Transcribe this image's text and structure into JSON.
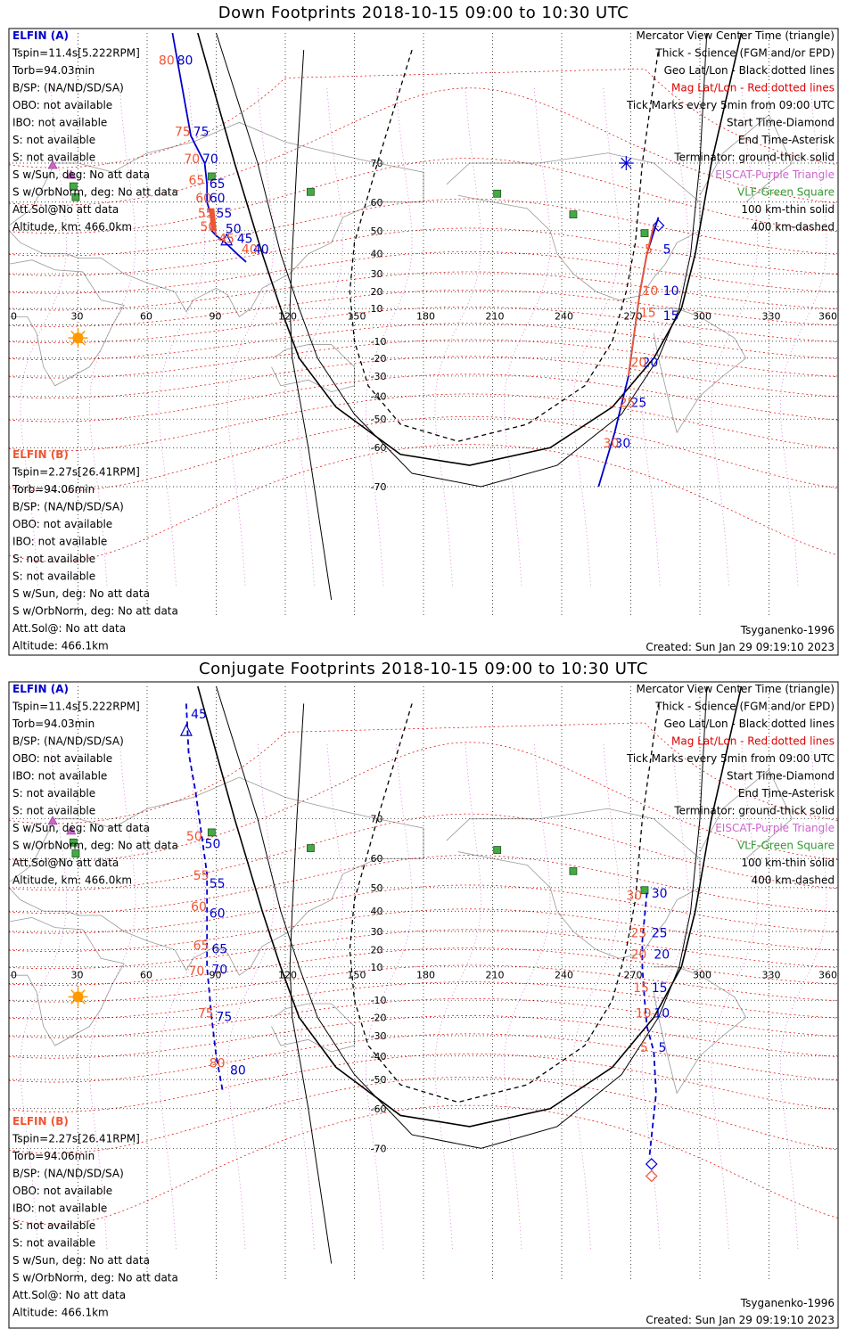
{
  "panels": [
    {
      "title": "Down Footprints 2018-10-15 09:00 to 10:30 UTC",
      "left_a": {
        "header": "ELFIN (A)",
        "lines": [
          "Tspin=11.4s[5.222RPM]",
          "Torb=94.03min",
          "B/SP: (NA/ND/SD/SA)",
          "OBO: not available",
          "IBO: not available",
          "S: not available",
          "S: not available",
          "S w/Sun, deg: No att data",
          "S w/OrbNorm, deg: No att data",
          "Att.Sol@No att data",
          "Altitude, km: 466.0km"
        ]
      },
      "left_b": {
        "header": "ELFIN (B)",
        "lines": [
          "Tspin=2.27s[26.41RPM]",
          "Torb=94.06min",
          "B/SP: (NA/ND/SD/SA)",
          "OBO: not available",
          "IBO: not available",
          "S: not available",
          "S: not available",
          "S w/Sun, deg: No att data",
          "S w/OrbNorm, deg: No att data",
          "Att.Sol@: No att data",
          "Altitude: 466.1km"
        ]
      },
      "legend": [
        "Mercator View Center Time (triangle)",
        "Thick - Science (FGM and/or EPD)",
        "Geo Lat/Lon - Black dotted lines",
        "Mag Lat/Lon - Red dotted lines",
        "Tick Marks every 5min from 09:00 UTC",
        "Start Time-Diamond",
        "End Time-Asterisk",
        "Terminator: ground-thick solid",
        "EISCAT-Purple Triangle",
        "VLF-Green Square",
        "100 km-thin solid",
        "400 km-dashed"
      ],
      "model": "Tsyganenko-1996",
      "created": "Created: Sun Jan 29 09:19:10 2023"
    },
    {
      "title": "Conjugate Footprints 2018-10-15 09:00 to 10:30 UTC",
      "left_a": {
        "header": "ELFIN (A)",
        "lines": [
          "Tspin=11.4s[5.222RPM]",
          "Torb=94.03min",
          "B/SP: (NA/ND/SD/SA)",
          "OBO: not available",
          "IBO: not available",
          "S: not available",
          "S: not available",
          "S w/Sun, deg: No att data",
          "S w/OrbNorm, deg: No att data",
          "Att.Sol@No att data",
          "Altitude, km: 466.0km"
        ]
      },
      "left_b": {
        "header": "ELFIN (B)",
        "lines": [
          "Tspin=2.27s[26.41RPM]",
          "Torb=94.06min",
          "B/SP: (NA/ND/SD/SA)",
          "OBO: not available",
          "IBO: not available",
          "S: not available",
          "S: not available",
          "S w/Sun, deg: No att data",
          "S w/OrbNorm, deg: No att data",
          "Att.Sol@: No att data",
          "Altitude: 466.1km"
        ]
      },
      "legend": [
        "Mercator View Center Time (triangle)",
        "Thick - Science (FGM and/or EPD)",
        "Geo Lat/Lon - Black dotted lines",
        "Mag Lat/Lon - Red dotted lines",
        "Tick Marks every 5min from 09:00 UTC",
        "Start Time-Diamond",
        "End Time-Asterisk",
        "Terminator: ground-thick solid",
        "EISCAT-Purple Triangle",
        "VLF-Green Square",
        "100 km-thin solid",
        "400 km-dashed"
      ],
      "model": "Tsyganenko-1996",
      "created": "Created: Sun Jan 29 09:19:10 2023"
    }
  ],
  "colors": {
    "elfin_a": "#0000cc",
    "elfin_b": "#ee5533",
    "mag_grid": "#dd0000",
    "geo_grid": "#000000",
    "eiscat": "#cc66cc",
    "vlf": "#339933",
    "sun": "#ff9900",
    "land": "#999999"
  },
  "chart_data": [
    {
      "type": "map",
      "projection": "mercator",
      "x_ticks": [
        0,
        30,
        60,
        90,
        120,
        150,
        180,
        210,
        240,
        270,
        300,
        330,
        360
      ],
      "y_ticks": [
        70,
        60,
        50,
        40,
        30,
        20,
        10,
        -10,
        -20,
        -30,
        -40,
        -50,
        -60,
        -70
      ],
      "eiscat_sites": [
        [
          19,
          69.6
        ],
        [
          27,
          67.4
        ]
      ],
      "vlf_sites": [
        [
          28,
          64.5
        ],
        [
          29,
          61.5
        ],
        [
          88,
          67
        ],
        [
          131,
          63
        ],
        [
          212,
          62.5
        ],
        [
          245,
          56
        ],
        [
          276,
          49
        ]
      ],
      "sun": [
        30,
        -8
      ],
      "series": [
        {
          "name": "ELFIN (A)",
          "track": [
            [
              71,
              85
            ],
            [
              79,
              75
            ],
            [
              85,
              70
            ],
            [
              86,
              65
            ],
            [
              86,
              60
            ],
            [
              88,
              55
            ],
            [
              88,
              50
            ],
            [
              90,
              48
            ],
            [
              94,
              45
            ],
            [
              99,
              40
            ],
            [
              103,
              36
            ]
          ],
          "science": [],
          "ticks": [
            {
              "label": "80",
              "pos": [
                73,
                83
              ]
            },
            {
              "label": "75",
              "pos": [
                80,
                75
              ]
            },
            {
              "label": "70",
              "pos": [
                84,
                70
              ]
            },
            {
              "label": "65",
              "pos": [
                87,
                64
              ]
            },
            {
              "label": "60",
              "pos": [
                87,
                60
              ]
            },
            {
              "label": "55",
              "pos": [
                90,
                55
              ]
            },
            {
              "label": "50",
              "pos": [
                94,
                49
              ]
            },
            {
              "label": "45",
              "pos": [
                99,
                45
              ]
            },
            {
              "label": "40",
              "pos": [
                106,
                40
              ]
            }
          ],
          "center_triangle": [
            94.5,
            46
          ]
        },
        {
          "name": "ELFIN (B)",
          "track": [
            [
              88,
              58
            ],
            [
              89,
              52
            ],
            [
              90,
              48
            ]
          ],
          "science": [
            [
              88,
              58
            ],
            [
              89,
              50
            ]
          ],
          "ticks": [
            {
              "label": "80",
              "pos": [
                65,
                83
              ]
            },
            {
              "label": "75",
              "pos": [
                72,
                75
              ]
            },
            {
              "label": "70",
              "pos": [
                76,
                70
              ]
            },
            {
              "label": "65",
              "pos": [
                78,
                65
              ]
            },
            {
              "label": "60",
              "pos": [
                81,
                60
              ]
            },
            {
              "label": "55",
              "pos": [
                82,
                55
              ]
            },
            {
              "label": "50",
              "pos": [
                83,
                50
              ]
            },
            {
              "label": "45",
              "pos": [
                91,
                45
              ]
            },
            {
              "label": "40",
              "pos": [
                101,
                40
              ]
            }
          ]
        },
        {
          "name": "ELFIN (A) south",
          "track": [
            [
              282,
              55
            ],
            [
              277,
              40
            ],
            [
              274,
              20
            ],
            [
              272,
              0
            ],
            [
              269,
              -30
            ],
            [
              263,
              -55
            ],
            [
              256,
              -70
            ]
          ],
          "ticks": [
            {
              "label": "5",
              "pos": [
                284,
                40
              ]
            },
            {
              "label": "10",
              "pos": [
                284,
                18
              ]
            },
            {
              "label": "15",
              "pos": [
                284,
                3
              ]
            },
            {
              "label": "20",
              "pos": [
                275,
                -25
              ]
            },
            {
              "label": "25",
              "pos": [
                270,
                -45
              ]
            },
            {
              "label": "30",
              "pos": [
                263,
                -60
              ]
            }
          ],
          "start_diamond": [
            282,
            52
          ],
          "end_asterisk": [
            268,
            70
          ]
        },
        {
          "name": "ELFIN (B) south",
          "track": [
            [
              280,
              52
            ],
            [
              277,
              40
            ],
            [
              274,
              20
            ],
            [
              272,
              0
            ],
            [
              269,
              -30
            ]
          ],
          "ticks": [
            {
              "label": "5",
              "pos": [
                276,
                40
              ]
            },
            {
              "label": "10",
              "pos": [
                275,
                18
              ]
            },
            {
              "label": "15",
              "pos": [
                274,
                5
              ]
            },
            {
              "label": "20",
              "pos": [
                270,
                -25
              ]
            },
            {
              "label": "25",
              "pos": [
                265,
                -45
              ]
            },
            {
              "label": "30",
              "pos": [
                258,
                -60
              ]
            }
          ]
        }
      ]
    },
    {
      "type": "map",
      "projection": "mercator",
      "x_ticks": [
        0,
        30,
        60,
        90,
        120,
        150,
        180,
        210,
        240,
        270,
        300,
        330,
        360
      ],
      "y_ticks": [
        70,
        60,
        50,
        40,
        30,
        20,
        10,
        -10,
        -20,
        -30,
        -40,
        -50,
        -60,
        -70
      ],
      "eiscat_sites": [
        [
          19,
          69.6
        ],
        [
          27,
          67.4
        ]
      ],
      "vlf_sites": [
        [
          28,
          64.5
        ],
        [
          29,
          61.5
        ],
        [
          88,
          67
        ],
        [
          131,
          63
        ],
        [
          212,
          62.5
        ],
        [
          245,
          56
        ],
        [
          276,
          49
        ]
      ],
      "sun": [
        30,
        -8
      ],
      "series": [
        {
          "name": "ELFIN (A)",
          "track": [
            [
              77,
              84
            ],
            [
              78,
              80
            ],
            [
              81,
              75
            ],
            [
              84,
              65
            ],
            [
              86,
              55
            ],
            [
              86,
              45
            ],
            [
              86,
              30
            ],
            [
              86,
              10
            ],
            [
              87,
              -5
            ],
            [
              88,
              -20
            ],
            [
              90,
              -40
            ],
            [
              93,
              -55
            ]
          ],
          "ticks": [
            {
              "label": "45",
              "pos": [
                79,
                83
              ]
            },
            {
              "label": "50",
              "pos": [
                85,
                63
              ]
            },
            {
              "label": "55",
              "pos": [
                87,
                50
              ]
            },
            {
              "label": "60",
              "pos": [
                87,
                37
              ]
            },
            {
              "label": "65",
              "pos": [
                88,
                18
              ]
            },
            {
              "label": "70",
              "pos": [
                88,
                6
              ]
            },
            {
              "label": "75",
              "pos": [
                90,
                -22
              ]
            },
            {
              "label": "80",
              "pos": [
                96,
                -48
              ]
            }
          ],
          "center_triangle": [
            77,
            82
          ]
        },
        {
          "name": "ELFIN (B)",
          "ticks": [
            {
              "label": "50",
              "pos": [
                77,
                65
              ]
            },
            {
              "label": "55",
              "pos": [
                80,
                53
              ]
            },
            {
              "label": "60",
              "pos": [
                79,
                40
              ]
            },
            {
              "label": "65",
              "pos": [
                80,
                20
              ]
            },
            {
              "label": "70",
              "pos": [
                78,
                5
              ]
            },
            {
              "label": "75",
              "pos": [
                82,
                -20
              ]
            },
            {
              "label": "80",
              "pos": [
                87,
                -45
              ]
            }
          ]
        },
        {
          "name": "ELFIN (A) south",
          "track": [
            [
              277,
              48
            ],
            [
              275,
              25
            ],
            [
              275,
              10
            ],
            [
              276,
              -10
            ],
            [
              277,
              -25
            ],
            [
              280,
              -38
            ],
            [
              281,
              -55
            ],
            [
              278,
              -72
            ]
          ],
          "ticks": [
            {
              "label": "30",
              "pos": [
                279,
                46
              ]
            },
            {
              "label": "25",
              "pos": [
                279,
                27
              ]
            },
            {
              "label": "20",
              "pos": [
                280,
                15
              ]
            },
            {
              "label": "15",
              "pos": [
                279,
                -5
              ]
            },
            {
              "label": "10",
              "pos": [
                280,
                -20
              ]
            },
            {
              "label": "5",
              "pos": [
                282,
                -38
              ]
            }
          ],
          "start_diamond": [
            279,
            -73
          ],
          "end_asterisk": null
        },
        {
          "name": "ELFIN (B) south",
          "ticks": [
            {
              "label": "30",
              "pos": [
                268,
                45
              ]
            },
            {
              "label": "25",
              "pos": [
                270,
                27
              ]
            },
            {
              "label": "20",
              "pos": [
                270,
                15
              ]
            },
            {
              "label": "15",
              "pos": [
                271,
                -5
              ]
            },
            {
              "label": "10",
              "pos": [
                272,
                -20
              ]
            },
            {
              "label": "5",
              "pos": [
                274,
                -38
              ]
            }
          ],
          "start_diamond": [
            279,
            -75
          ]
        }
      ]
    }
  ]
}
